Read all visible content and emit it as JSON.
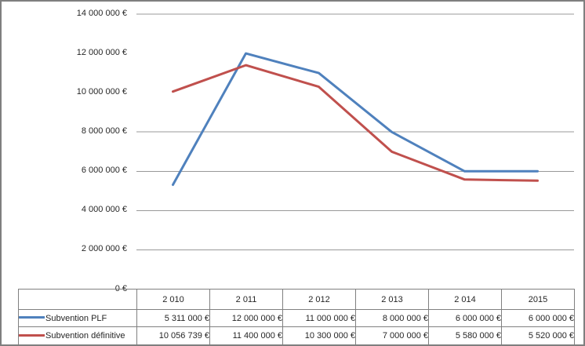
{
  "chart_data": {
    "type": "line",
    "categories": [
      "2 010",
      "2 011",
      "2 012",
      "2 013",
      "2 014",
      "2015"
    ],
    "series": [
      {
        "name": "Subvention PLF",
        "color": "#4F81BD",
        "values": [
          5311000,
          12000000,
          11000000,
          8000000,
          6000000,
          6000000
        ],
        "value_labels": [
          "5 311 000 €",
          "12 000 000 €",
          "11 000 000 €",
          "8 000 000 €",
          "6 000 000 €",
          "6 000 000 €"
        ]
      },
      {
        "name": "Subvention définitive",
        "color": "#C0504D",
        "values": [
          10056739,
          11400000,
          10300000,
          7000000,
          5580000,
          5520000
        ],
        "value_labels": [
          "10 056 739 €",
          "11 400 000 €",
          "10 300 000 €",
          "7 000 000 €",
          "5 580 000 €",
          "5 520 000 €"
        ]
      }
    ],
    "y_axis": {
      "min": 0,
      "max": 14000000,
      "major_unit": 2000000,
      "tick_labels": [
        "14 000 000 €",
        "12 000 000 €",
        "10 000 000 €",
        "8 000 000 €",
        "6 000 000 €",
        "4 000 000 €",
        "2 000 000 €",
        "0 €"
      ]
    },
    "gridline_values": [
      14000000,
      8000000,
      6000000,
      4000000,
      2000000
    ],
    "legend_position": "data-table-left",
    "data_table_shown": true,
    "title": "",
    "xlabel": "",
    "ylabel": ""
  },
  "colors": {
    "series_blue": "#4F81BD",
    "series_red": "#C0504D",
    "gridline": "#999999",
    "axis_line": "#8c8c8c",
    "table_border": "#808080",
    "text": "#262626",
    "background": "#FFFFFF",
    "outer_border": "#7f7f7f"
  }
}
